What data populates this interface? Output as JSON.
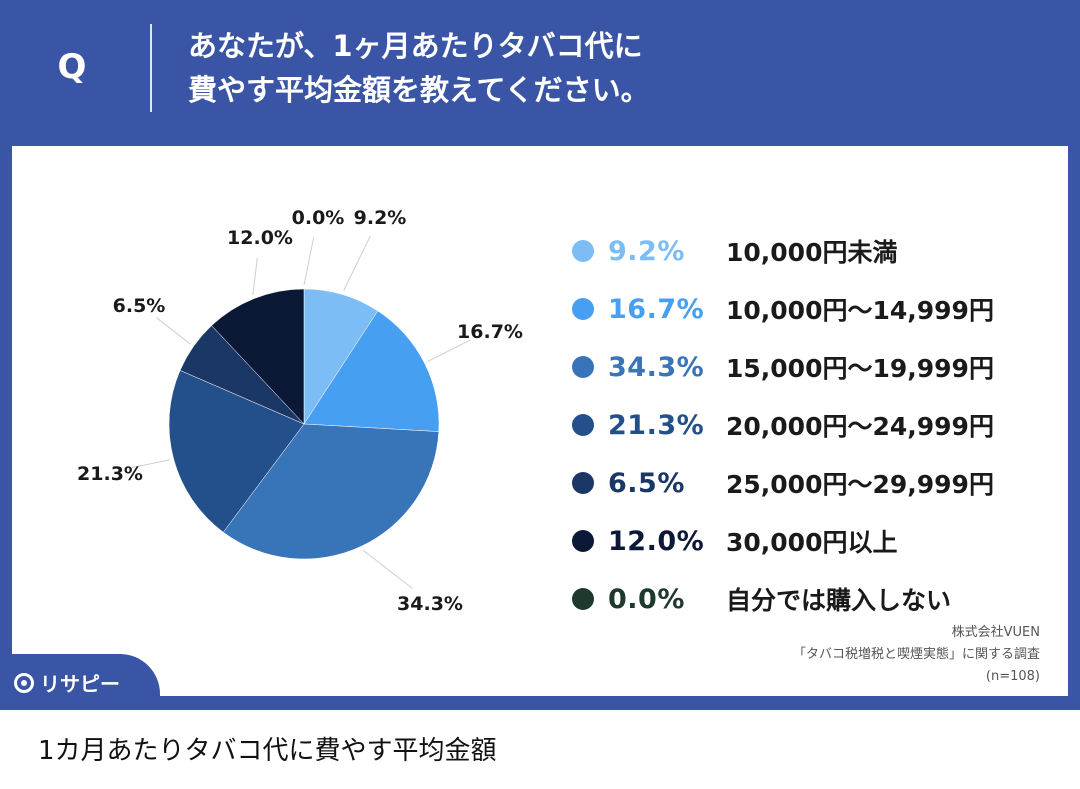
{
  "header": {
    "q_mark": "Q",
    "question_line1": "あなたが、1ヶ月あたりタバコ代に",
    "question_line2": "費やす平均金額を教えてください。"
  },
  "chart_data": {
    "type": "pie",
    "title": "",
    "categories": [
      "10,000円未満",
      "10,000円〜14,999円",
      "15,000円〜19,999円",
      "20,000円〜24,999円",
      "25,000円〜29,999円",
      "30,000円以上",
      "自分では購入しない"
    ],
    "values": [
      9.2,
      16.7,
      34.3,
      21.3,
      6.5,
      12.0,
      0.0
    ],
    "value_labels": [
      "9.2%",
      "16.7%",
      "34.3%",
      "21.3%",
      "6.5%",
      "12.0%",
      "0.0%"
    ],
    "colors": [
      "#7dbdf5",
      "#469ff0",
      "#3874b8",
      "#23508a",
      "#1a3766",
      "#0c1936",
      "#1e3a2e"
    ],
    "unit": "%",
    "legend_position": "right",
    "start_angle": "12 o'clock",
    "direction": "clockwise"
  },
  "source": {
    "company": "株式会社VUEN",
    "survey": "「タバコ税増税と喫煙実態」に関する調査",
    "sample": "(n=108)"
  },
  "logo": {
    "text": "リサピー"
  },
  "caption": "1カ月あたりタバコ代に費やす平均金額"
}
